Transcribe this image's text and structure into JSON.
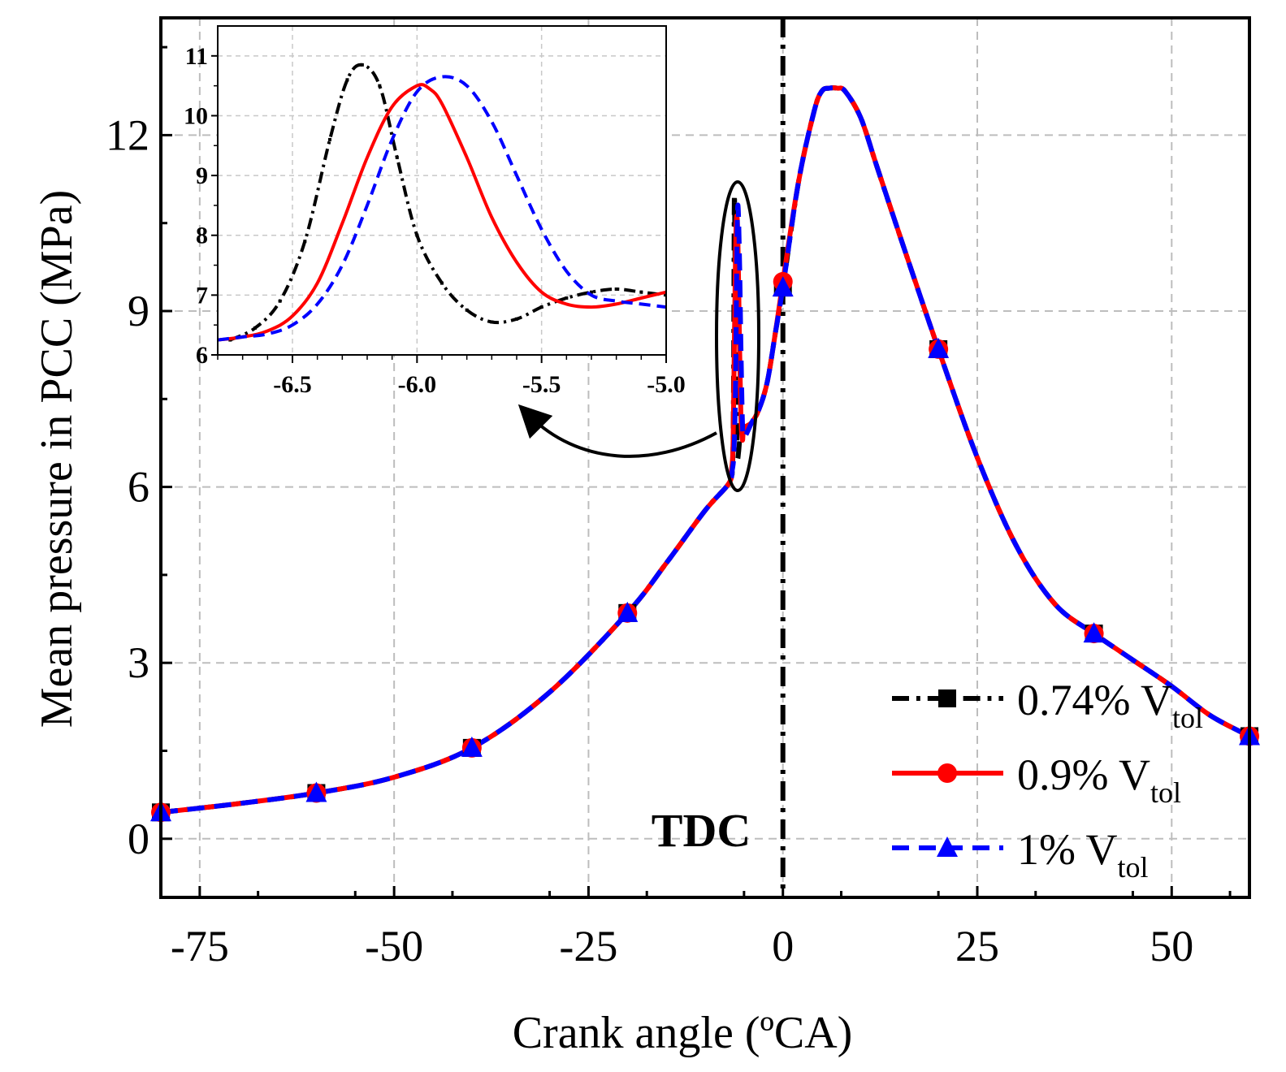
{
  "chart_data": {
    "type": "line",
    "xlabel": "Crank angle (ºCA)",
    "ylabel": "Mean pressure in PCC (MPa)",
    "xlim": [
      -80,
      60
    ],
    "ylim": [
      -1,
      14
    ],
    "xticks": [
      -75,
      -50,
      -25,
      0,
      25,
      50
    ],
    "xtick_labels": [
      "-75",
      "-50",
      "-25",
      "0",
      "25",
      "50"
    ],
    "yticks": [
      0,
      3,
      6,
      9,
      12
    ],
    "ytick_labels": [
      "0",
      "3",
      "6",
      "9",
      "12"
    ],
    "grid": true,
    "legend_position": "bottom-right",
    "annotation": "TDC",
    "vline_x": 0,
    "series": [
      {
        "name": "0.74% V",
        "sub": "tol",
        "color": "#000000",
        "dash": "dash-dot",
        "marker": "square",
        "x": [
          -80,
          -70,
          -60,
          -50,
          -40,
          -30,
          -20,
          -15,
          -10,
          -7,
          -6.5,
          -6.35,
          -6.25,
          -6.15,
          -6.0,
          -5.85,
          -5.7,
          -5.5,
          -5.3,
          -5.0,
          -4.0,
          -3.0,
          -2.0,
          -1.0,
          0,
          2,
          4,
          5,
          6,
          7,
          8,
          10,
          12,
          15,
          20,
          25,
          30,
          35,
          40,
          45,
          50,
          55,
          60
        ],
        "y": [
          0.45,
          0.6,
          0.78,
          1.05,
          1.55,
          2.5,
          3.85,
          4.7,
          5.6,
          6.05,
          6.3,
          7.6,
          10.9,
          9.8,
          7.5,
          6.55,
          6.6,
          6.9,
          7.1,
          7.0,
          7.1,
          7.35,
          7.8,
          8.6,
          9.4,
          11.2,
          12.4,
          12.75,
          12.8,
          12.8,
          12.75,
          12.3,
          11.5,
          10.3,
          8.35,
          6.5,
          5.0,
          4.0,
          3.5,
          3.05,
          2.6,
          2.1,
          1.75
        ],
        "marker_x": [
          -80,
          -60,
          -40,
          -20,
          0,
          20,
          40,
          60
        ],
        "marker_y": [
          0.45,
          0.78,
          1.55,
          3.85,
          9.4,
          8.35,
          3.5,
          1.75
        ]
      },
      {
        "name": "0.9% V",
        "sub": "tol",
        "color": "#ff0000",
        "dash": "solid",
        "marker": "circle",
        "x": [
          -80,
          -70,
          -60,
          -50,
          -40,
          -30,
          -20,
          -15,
          -10,
          -7,
          -6.6,
          -6.4,
          -6.2,
          -6.0,
          -5.8,
          -5.6,
          -5.4,
          -5.2,
          -5.0,
          -4.0,
          -3.0,
          -2.0,
          -1.0,
          0,
          2,
          4,
          5,
          6,
          7,
          8,
          10,
          12,
          15,
          20,
          25,
          30,
          35,
          40,
          45,
          50,
          55,
          60
        ],
        "y": [
          0.45,
          0.6,
          0.78,
          1.05,
          1.55,
          2.5,
          3.85,
          4.7,
          5.6,
          6.05,
          6.3,
          6.8,
          8.9,
          10.5,
          10.3,
          8.6,
          7.2,
          6.8,
          7.0,
          7.1,
          7.35,
          7.8,
          8.6,
          9.5,
          11.2,
          12.4,
          12.75,
          12.8,
          12.8,
          12.75,
          12.3,
          11.5,
          10.3,
          8.35,
          6.5,
          5.0,
          4.0,
          3.5,
          3.05,
          2.6,
          2.1,
          1.75
        ],
        "marker_x": [
          -80,
          -60,
          -40,
          -20,
          0,
          20,
          40,
          60
        ],
        "marker_y": [
          0.45,
          0.78,
          1.55,
          3.85,
          9.5,
          8.35,
          3.5,
          1.75
        ]
      },
      {
        "name": "1% V",
        "sub": "tol",
        "color": "#0000ff",
        "dash": "dash",
        "marker": "triangle",
        "x": [
          -80,
          -70,
          -60,
          -50,
          -40,
          -30,
          -20,
          -15,
          -10,
          -7,
          -6.5,
          -6.3,
          -6.1,
          -5.95,
          -5.8,
          -5.6,
          -5.4,
          -5.2,
          -5.0,
          -4.0,
          -3.0,
          -2.0,
          -1.0,
          0,
          2,
          4,
          5,
          6,
          7,
          8,
          10,
          12,
          15,
          20,
          25,
          30,
          35,
          40,
          45,
          50,
          55,
          60
        ],
        "y": [
          0.45,
          0.6,
          0.78,
          1.05,
          1.55,
          2.5,
          3.85,
          4.7,
          5.6,
          6.05,
          6.3,
          6.6,
          7.6,
          9.6,
          10.8,
          10.0,
          8.4,
          7.1,
          6.85,
          7.1,
          7.35,
          7.8,
          8.6,
          9.4,
          11.2,
          12.4,
          12.75,
          12.8,
          12.8,
          12.75,
          12.3,
          11.5,
          10.3,
          8.35,
          6.5,
          5.0,
          4.0,
          3.5,
          3.05,
          2.6,
          2.1,
          1.75
        ],
        "marker_x": [
          -80,
          -60,
          -40,
          -20,
          0,
          20,
          40,
          60
        ],
        "marker_y": [
          0.45,
          0.78,
          1.55,
          3.85,
          9.4,
          8.35,
          3.5,
          1.75
        ]
      }
    ],
    "inset": {
      "xlim": [
        -6.8,
        -5.0
      ],
      "ylim": [
        6,
        11.5
      ],
      "xticks": [
        -6.5,
        -6.0,
        -5.5,
        -5.0
      ],
      "xtick_labels": [
        "-6.5",
        "-6.0",
        "-5.5",
        "-5.0"
      ],
      "yticks": [
        6,
        7,
        8,
        9,
        10,
        11
      ],
      "ytick_labels": [
        "6",
        "7",
        "8",
        "9",
        "10",
        "11"
      ],
      "series": [
        {
          "name": "0.74% V",
          "color": "#000000",
          "dash": "dash-dot",
          "x": [
            -6.75,
            -6.65,
            -6.55,
            -6.45,
            -6.35,
            -6.28,
            -6.22,
            -6.15,
            -6.08,
            -6.0,
            -5.9,
            -5.8,
            -5.7,
            -5.6,
            -5.5,
            -5.4,
            -5.3,
            -5.2,
            -5.1,
            -5.0
          ],
          "y": [
            6.25,
            6.45,
            6.9,
            7.9,
            9.6,
            10.6,
            10.85,
            10.5,
            9.3,
            8.0,
            7.2,
            6.75,
            6.55,
            6.6,
            6.8,
            6.95,
            7.05,
            7.1,
            7.05,
            7.0
          ],
          "points_x": [
            -6.75,
            -6.65,
            -6.55,
            -6.45,
            -6.35,
            -6.28,
            -6.22,
            -6.15,
            -6.08,
            -6.0,
            -5.9,
            -5.8,
            -5.7,
            -5.6,
            -5.5,
            -5.4,
            -5.3,
            -5.2,
            -5.1
          ],
          "points_y": [
            6.25,
            6.45,
            6.9,
            7.9,
            9.6,
            10.6,
            10.85,
            10.5,
            9.3,
            8.0,
            7.2,
            6.75,
            6.55,
            6.6,
            6.8,
            6.95,
            7.05,
            7.1,
            7.05
          ]
        },
        {
          "name": "0.9% V",
          "color": "#ff0000",
          "dash": "solid",
          "x": [
            -6.8,
            -6.7,
            -6.6,
            -6.5,
            -6.4,
            -6.3,
            -6.2,
            -6.1,
            -6.0,
            -5.95,
            -5.9,
            -5.8,
            -5.7,
            -5.6,
            -5.5,
            -5.4,
            -5.3,
            -5.2,
            -5.1,
            -5.0
          ],
          "y": [
            6.25,
            6.3,
            6.4,
            6.65,
            7.2,
            8.2,
            9.3,
            10.15,
            10.5,
            10.45,
            10.2,
            9.3,
            8.3,
            7.55,
            7.05,
            6.85,
            6.8,
            6.85,
            6.95,
            7.05
          ]
        },
        {
          "name": "1% V",
          "color": "#0000ff",
          "dash": "dash",
          "x": [
            -6.8,
            -6.7,
            -6.6,
            -6.5,
            -6.4,
            -6.3,
            -6.2,
            -6.1,
            -6.0,
            -5.9,
            -5.8,
            -5.7,
            -5.6,
            -5.5,
            -5.4,
            -5.3,
            -5.2,
            -5.1,
            -5.0
          ],
          "y": [
            6.25,
            6.3,
            6.35,
            6.5,
            6.85,
            7.5,
            8.5,
            9.6,
            10.4,
            10.65,
            10.5,
            9.9,
            9.0,
            8.1,
            7.4,
            7.0,
            6.9,
            6.85,
            6.8
          ]
        }
      ]
    }
  }
}
